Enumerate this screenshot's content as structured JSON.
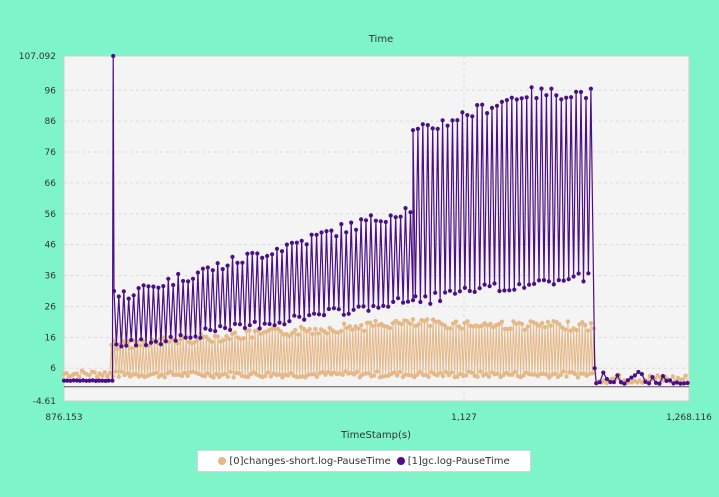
{
  "chart_data": {
    "type": "line",
    "title": "Time",
    "xlabel": "TimeStamp(s)",
    "ylabel": "",
    "xlim": [
      876.153,
      1268.116
    ],
    "ylim": [
      -4.61,
      107.092
    ],
    "x_tick_labels": [
      "876.153",
      "1,127",
      "1,268.116"
    ],
    "x_ticks": [
      876.153,
      1127,
      1268.116
    ],
    "y_tick_labels": [
      "107.092",
      "96",
      "86",
      "76",
      "66",
      "56",
      "46",
      "36",
      "26",
      "16",
      "6",
      "-4.61"
    ],
    "y_ticks": [
      107.092,
      96,
      86,
      76,
      66,
      56,
      46,
      36,
      26,
      16,
      6,
      -4.61
    ],
    "grid": true,
    "legend_position": "bottom",
    "series": [
      {
        "name": "[0]changes-short.log-PauseTime",
        "color": "#e5b887",
        "segments": [
          {
            "x_start": 876.153,
            "x_end": 906.0,
            "low": 3.0,
            "high": 5.5
          },
          {
            "x_start": 906.0,
            "x_end": 1209.0,
            "low_start": 3.0,
            "low_end": 3.0,
            "high_start": 15.0,
            "high_mid": 22.0,
            "high_end": 21.0
          },
          {
            "x_start": 1209.0,
            "x_end": 1268.116,
            "low": 1.0,
            "high": 4.0
          }
        ]
      },
      {
        "name": "[1]gc.log-PauseTime",
        "color": "#4b0f87",
        "segments": [
          {
            "x_start": 876.153,
            "x_end": 906.0,
            "low": 1.8,
            "high": 2.0
          },
          {
            "spike_x": 907.0,
            "spike_y": 107.092
          },
          {
            "x_start": 908.0,
            "x_end": 1095.0,
            "low_start": 13.0,
            "low_end": 28.0,
            "high_start": 29.0,
            "high_end": 58.0
          },
          {
            "x_start": 1095.0,
            "x_end": 1208.0,
            "low_start": 28.0,
            "low_end": 36.0,
            "high_start": 82.0,
            "high_end": 98.0
          },
          {
            "x_start": 1209.0,
            "x_end": 1268.116,
            "low": 1.0,
            "high": 7.0
          }
        ]
      }
    ]
  }
}
